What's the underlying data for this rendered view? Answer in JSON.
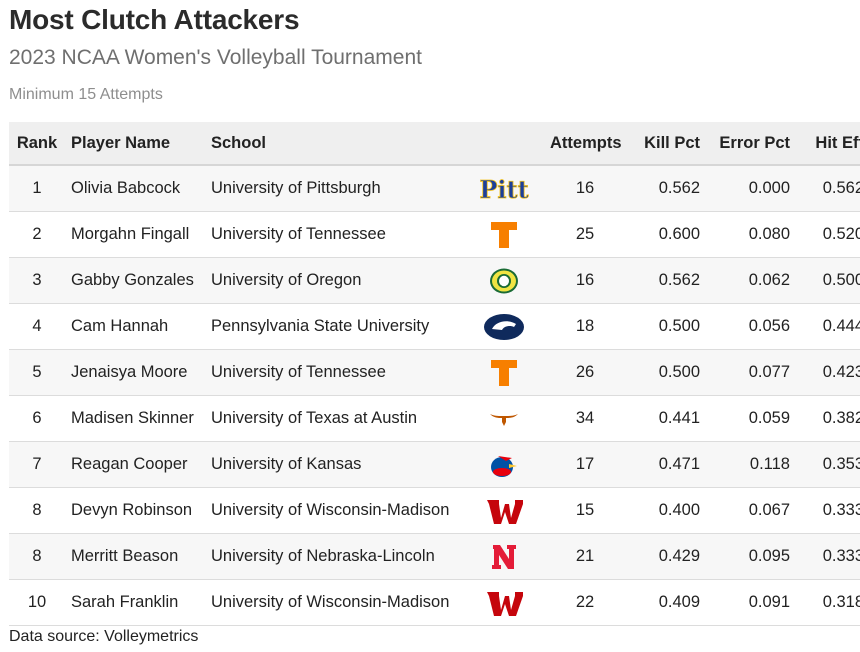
{
  "title": "Most Clutch Attackers",
  "subtitle": "2023 NCAA Women's Volleyball Tournament",
  "note": "Minimum 15 Attempts",
  "source": "Data source: Volleymetrics",
  "chart_data": {
    "type": "table",
    "columns": [
      "Rank",
      "Player Name",
      "School",
      "",
      "Attempts",
      "Kill Pct",
      "Error Pct",
      "Hit Eff"
    ],
    "rows": [
      {
        "rank": "1",
        "player": "Olivia Babcock",
        "school": "University of Pittsburgh",
        "logo": "pitt-logo-icon",
        "attempts": "16",
        "kill_pct": "0.562",
        "error_pct": "0.000",
        "hit_eff": "0.562"
      },
      {
        "rank": "2",
        "player": "Morgahn Fingall",
        "school": "University of Tennessee",
        "logo": "tennessee-logo-icon",
        "attempts": "25",
        "kill_pct": "0.600",
        "error_pct": "0.080",
        "hit_eff": "0.520"
      },
      {
        "rank": "3",
        "player": "Gabby Gonzales",
        "school": "University of Oregon",
        "logo": "oregon-logo-icon",
        "attempts": "16",
        "kill_pct": "0.562",
        "error_pct": "0.062",
        "hit_eff": "0.500"
      },
      {
        "rank": "4",
        "player": "Cam Hannah",
        "school": "Pennsylvania State University",
        "logo": "penn-state-logo-icon",
        "attempts": "18",
        "kill_pct": "0.500",
        "error_pct": "0.056",
        "hit_eff": "0.444"
      },
      {
        "rank": "5",
        "player": "Jenaisya Moore",
        "school": "University of Tennessee",
        "logo": "tennessee-logo-icon",
        "attempts": "26",
        "kill_pct": "0.500",
        "error_pct": "0.077",
        "hit_eff": "0.423"
      },
      {
        "rank": "6",
        "player": "Madisen Skinner",
        "school": "University of Texas at Austin",
        "logo": "texas-longhorn-logo-icon",
        "attempts": "34",
        "kill_pct": "0.441",
        "error_pct": "0.059",
        "hit_eff": "0.382"
      },
      {
        "rank": "7",
        "player": "Reagan Cooper",
        "school": "University of Kansas",
        "logo": "kansas-jayhawk-logo-icon",
        "attempts": "17",
        "kill_pct": "0.471",
        "error_pct": "0.118",
        "hit_eff": "0.353"
      },
      {
        "rank": "8",
        "player": "Devyn Robinson",
        "school": "University of Wisconsin-Madison",
        "logo": "wisconsin-logo-icon",
        "attempts": "15",
        "kill_pct": "0.400",
        "error_pct": "0.067",
        "hit_eff": "0.333"
      },
      {
        "rank": "8",
        "player": "Merritt Beason",
        "school": "University of Nebraska-Lincoln",
        "logo": "nebraska-logo-icon",
        "attempts": "21",
        "kill_pct": "0.429",
        "error_pct": "0.095",
        "hit_eff": "0.333"
      },
      {
        "rank": "10",
        "player": "Sarah Franklin",
        "school": "University of Wisconsin-Madison",
        "logo": "wisconsin-logo-icon",
        "attempts": "22",
        "kill_pct": "0.409",
        "error_pct": "0.091",
        "hit_eff": "0.318"
      }
    ]
  },
  "colors": {
    "pitt": "#1c3f9a",
    "pitt_gold": "#f4c21a",
    "tennessee": "#f77f00",
    "oregon_green": "#1a6b35",
    "oregon_yellow": "#f0e442",
    "penn_state": "#0f2a5c",
    "texas": "#bf5700",
    "kansas_blue": "#0051a5",
    "kansas_red": "#e8000d",
    "kansas_yellow": "#ffc82e",
    "wisconsin": "#c5050c",
    "nebraska": "#e41c38"
  }
}
